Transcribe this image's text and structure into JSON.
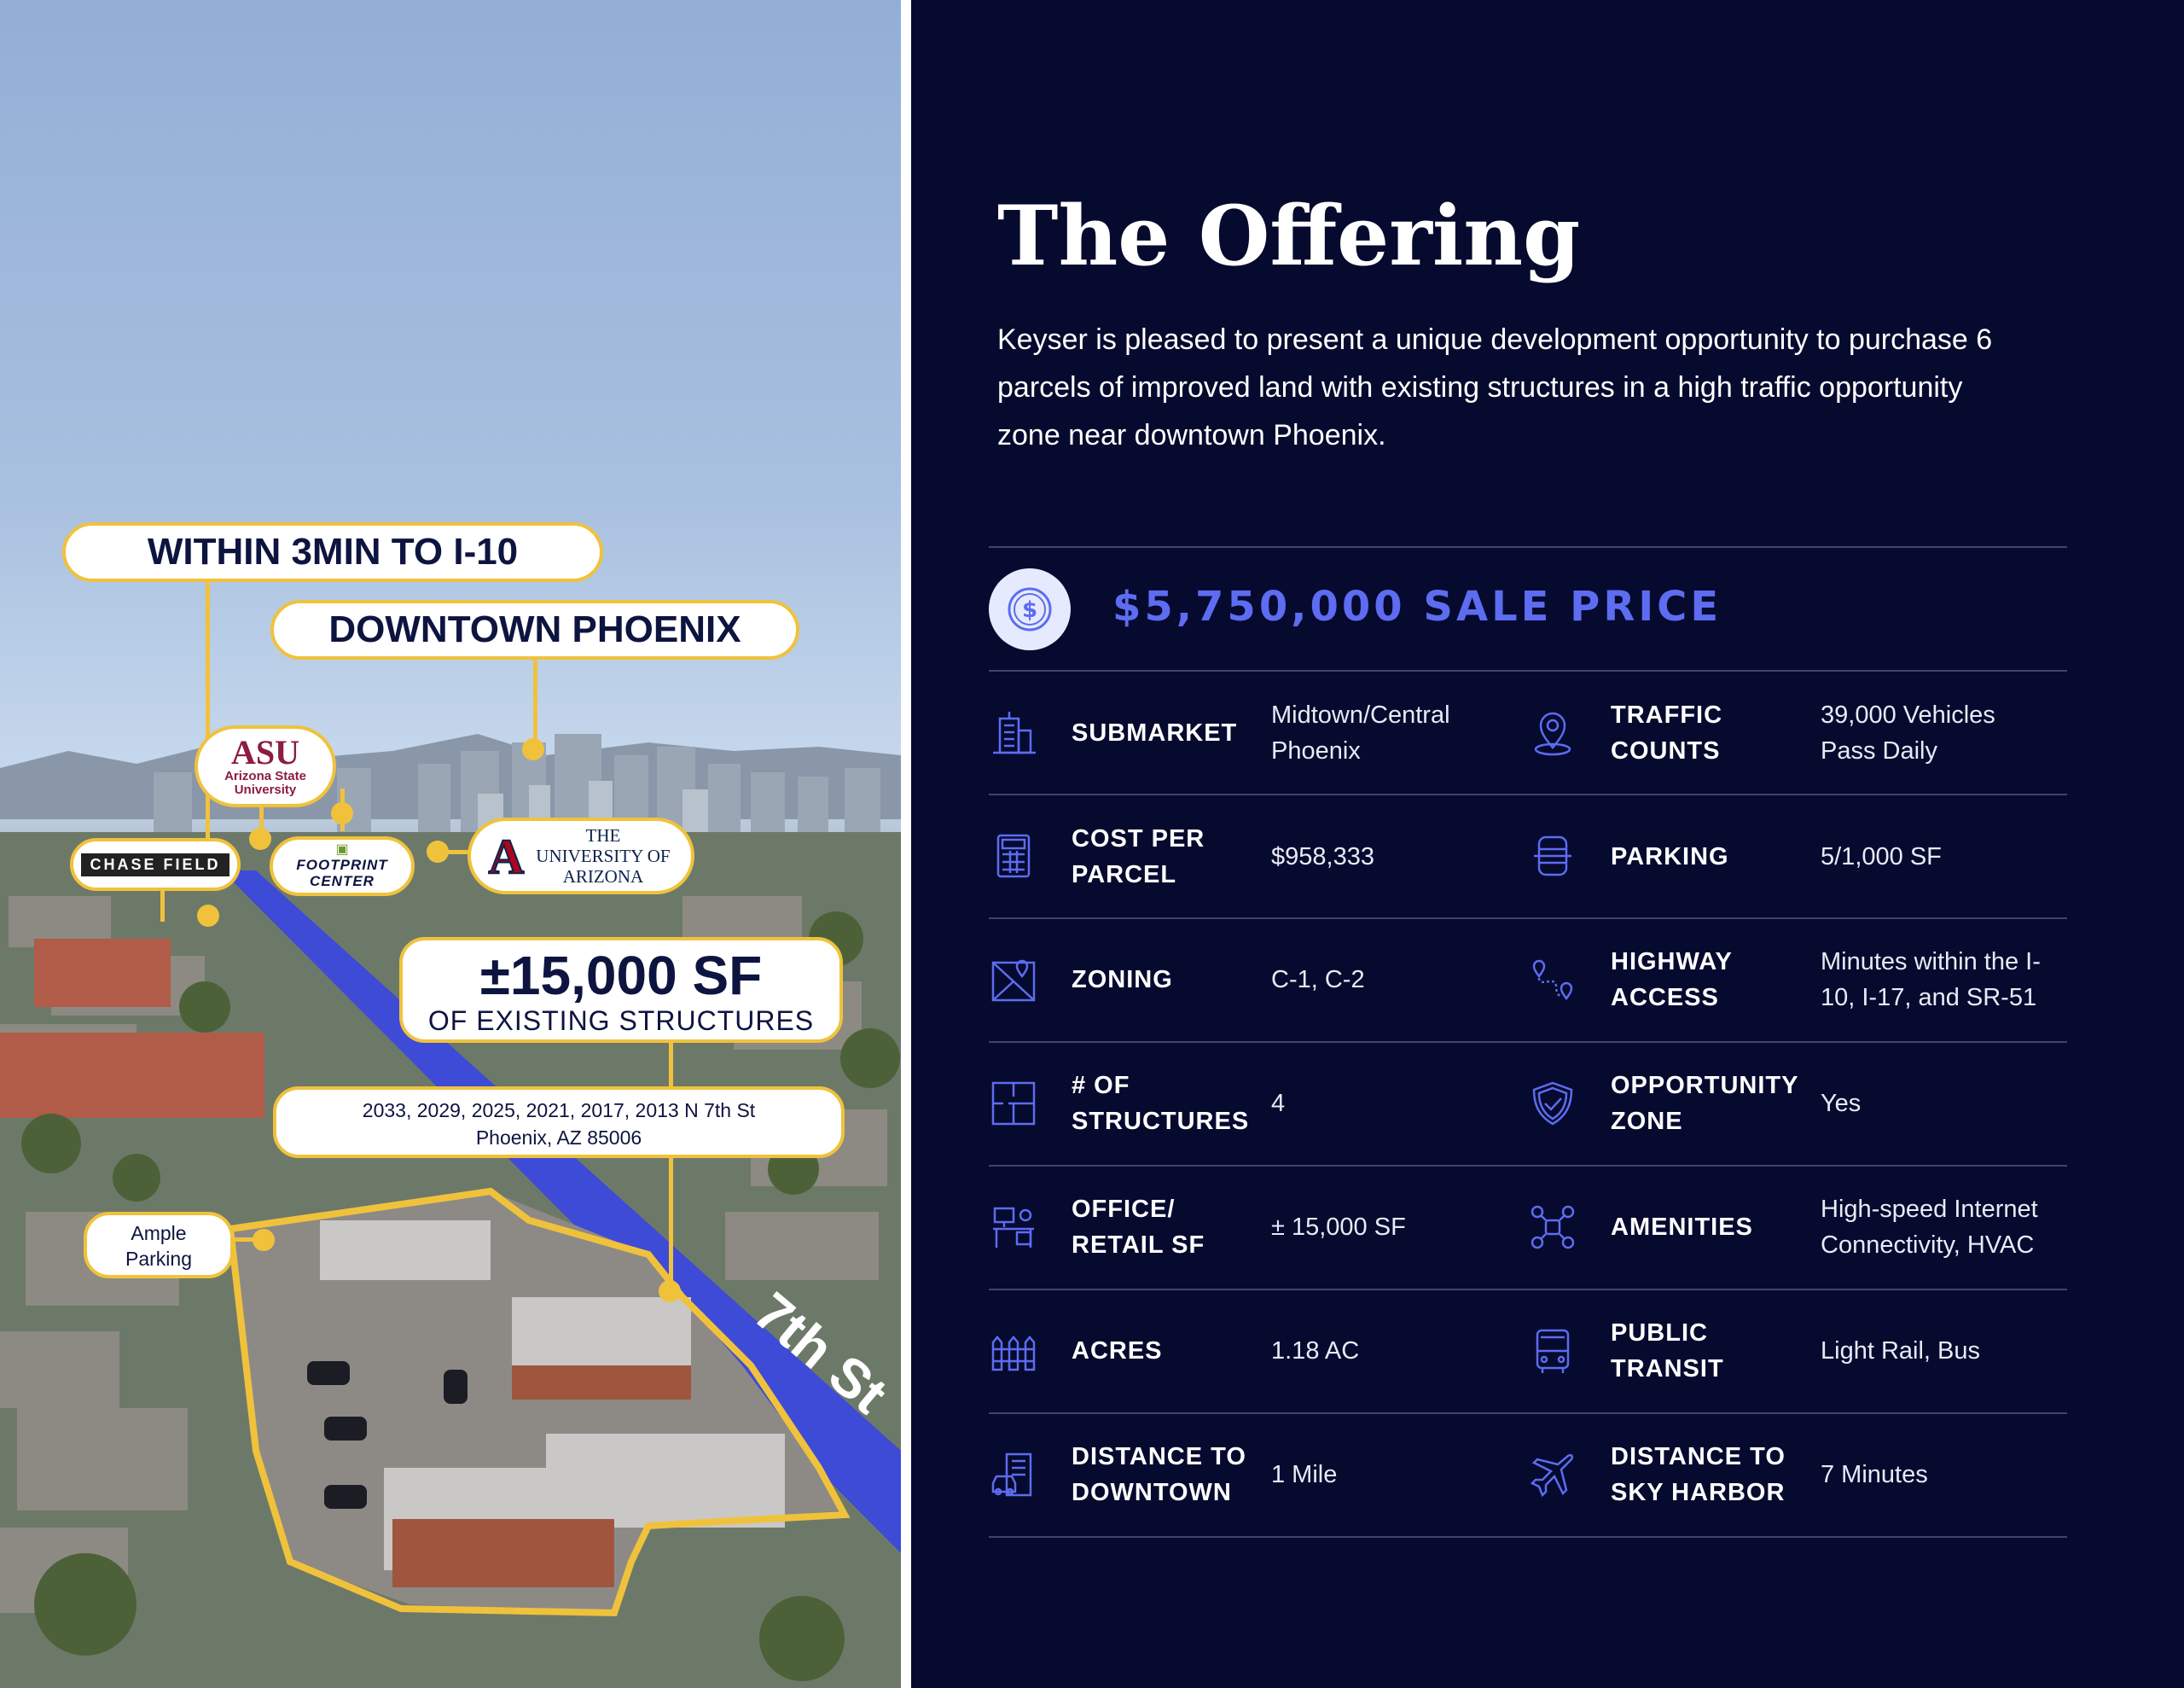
{
  "map": {
    "callout_i10": "WITHIN 3MIN TO I-10",
    "callout_downtown": "DOWNTOWN PHOENIX",
    "logo_asu_main": "ASU",
    "logo_asu_sub": "Arizona State University",
    "logo_chase": "CHASE FIELD",
    "logo_footprint": "FOOTPRINT CENTER",
    "logo_ua": "THE UNIVERSITY OF ARIZONA",
    "sf_headline": "±15,000 SF",
    "sf_sub": "OF EXISTING STRUCTURES",
    "address_line1": "2033, 2029, 2025, 2021, 2017, 2013 N 7th St",
    "address_line2": "Phoenix, AZ 85006",
    "parking_line1": "Ample",
    "parking_line2": "Parking",
    "street_label": "7th St"
  },
  "offering": {
    "title": "The Offering",
    "intro": "Keyser is pleased to present a unique development opportunity to purchase 6 parcels of improved land with existing structures in a high traffic opportunity zone near downtown Phoenix.",
    "price": "$5,750,000 SALE PRICE",
    "rows": [
      {
        "left": {
          "icon": "building-icon",
          "label": "SUBMARKET",
          "value": "Midtown/Central Phoenix"
        },
        "right": {
          "icon": "location-pin-icon",
          "label": "TRAFFIC COUNTS",
          "value": "39,000 Vehicles Pass Daily"
        }
      },
      {
        "left": {
          "icon": "calculator-icon",
          "label": "COST PER PARCEL",
          "value": "$958,333"
        },
        "right": {
          "icon": "parking-icon",
          "label": "PARKING",
          "value": "5/1,000 SF"
        }
      },
      {
        "left": {
          "icon": "map-icon",
          "label": "ZONING",
          "value": "C-1, C-2"
        },
        "right": {
          "icon": "route-icon",
          "label": "HIGHWAY ACCESS",
          "value": "Minutes within the I-10, I-17, and SR-51"
        }
      },
      {
        "left": {
          "icon": "floorplan-icon",
          "label": "# OF STRUCTURES",
          "value": "4"
        },
        "right": {
          "icon": "shield-check-icon",
          "label": "OPPORTUNITY ZONE",
          "value": "Yes"
        }
      },
      {
        "left": {
          "icon": "office-desk-icon",
          "label": "OFFICE/ RETAIL SF",
          "value": "± 15,000 SF"
        },
        "right": {
          "icon": "network-icon",
          "label": "AMENITIES",
          "value": "High-speed Internet Connectivity, HVAC"
        }
      },
      {
        "left": {
          "icon": "fence-icon",
          "label": "ACRES",
          "value": "1.18 AC"
        },
        "right": {
          "icon": "bus-icon",
          "label": "PUBLIC TRANSIT",
          "value": "Light Rail, Bus"
        }
      },
      {
        "left": {
          "icon": "city-car-icon",
          "label": "DISTANCE TO DOWNTOWN",
          "value": "1 Mile"
        },
        "right": {
          "icon": "airplane-icon",
          "label": "DISTANCE TO SKY HARBOR",
          "value": "7 Minutes"
        }
      }
    ]
  },
  "colors": {
    "navy": "#060a2e",
    "gold": "#f0c23c",
    "accent": "#5d6cf0",
    "road": "#3d4bd6"
  }
}
